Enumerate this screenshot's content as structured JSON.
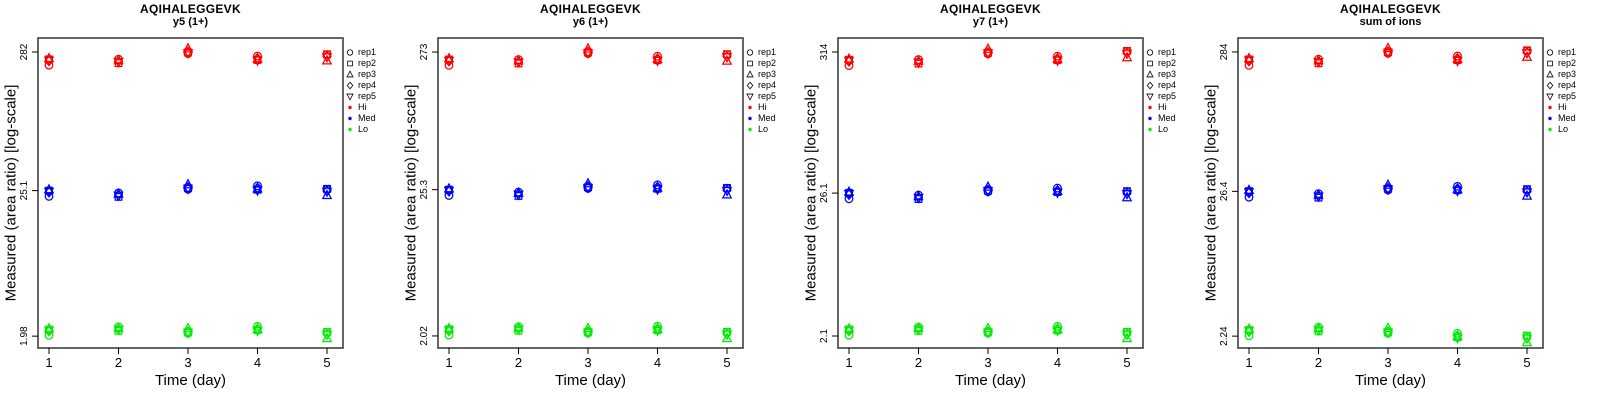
{
  "figure": {
    "background": "#ffffff",
    "box_color": "#404040",
    "tick_color": "#000000"
  },
  "plot_style": {
    "rep_markers": [
      "circle",
      "square",
      "triangle-up",
      "diamond",
      "triangle-down"
    ],
    "level_colors": {
      "Hi": "#ff0000",
      "Med": "#0000ff",
      "Lo": "#00ee00"
    }
  },
  "legend": {
    "entries": [
      {
        "label": "rep1",
        "marker": "circle",
        "color": "#000000"
      },
      {
        "label": "rep2",
        "marker": "square",
        "color": "#000000"
      },
      {
        "label": "rep3",
        "marker": "triangle-up",
        "color": "#000000"
      },
      {
        "label": "rep4",
        "marker": "diamond",
        "color": "#000000"
      },
      {
        "label": "rep5",
        "marker": "triangle-down",
        "color": "#000000"
      },
      {
        "label": "Hi",
        "marker": "dot",
        "color": "#ff0000"
      },
      {
        "label": "Med",
        "marker": "dot",
        "color": "#0000ff"
      },
      {
        "label": "Lo",
        "marker": "dot",
        "color": "#00ee00"
      }
    ]
  },
  "chart_data": [
    {
      "type": "scatter",
      "title": "AQIHALEGGEVK",
      "subtitle": "y5 (1+)",
      "xlabel": "Time (day)",
      "ylabel": "Measured (area ratio) [log-scale]",
      "yscale": "log",
      "x_days": [
        1,
        2,
        3,
        4,
        5
      ],
      "xticks": [
        "1",
        "2",
        "3",
        "4",
        "5"
      ],
      "ylim": [
        1.61,
        360
      ],
      "yticks": [
        {
          "v": 1.98,
          "label": "1.98"
        },
        {
          "v": 25.1,
          "label": "25.1"
        },
        {
          "v": 282,
          "label": "282"
        }
      ],
      "reps": [
        "rep1",
        "rep2",
        "rep3",
        "rep4",
        "rep5"
      ],
      "series": [
        {
          "name": "Hi",
          "color": "#ff0000",
          "rows": "day",
          "cols": "rep",
          "values": [
            [
              224,
              248,
              253,
              241,
              243
            ],
            [
              249,
              232,
              244,
              239,
              237
            ],
            [
              274,
              280,
              300,
              283,
              277
            ],
            [
              263,
              245,
              250,
              253,
              243
            ],
            [
              269,
              271,
              243,
              261,
              258
            ]
          ]
        },
        {
          "name": "Med",
          "color": "#0000ff",
          "rows": "day",
          "cols": "rep",
          "values": [
            [
              22.7,
              25.1,
              25.6,
              24.4,
              24.6
            ],
            [
              24.1,
              22.5,
              23.7,
              23.2,
              23.0
            ],
            [
              25.7,
              26.2,
              28.0,
              26.5,
              25.9
            ],
            [
              27.3,
              25.5,
              26.0,
              26.3,
              25.2
            ],
            [
              25.6,
              25.9,
              23.2,
              24.9,
              24.7
            ]
          ]
        },
        {
          "name": "Lo",
          "color": "#00ee00",
          "rows": "day",
          "cols": "rep",
          "values": [
            [
              2.01,
              2.22,
              2.27,
              2.16,
              2.18
            ],
            [
              2.33,
              2.17,
              2.28,
              2.24,
              2.22
            ],
            [
              2.08,
              2.12,
              2.27,
              2.14,
              2.1
            ],
            [
              2.35,
              2.2,
              2.24,
              2.26,
              2.17
            ],
            [
              2.11,
              2.13,
              1.91,
              2.05,
              2.03
            ]
          ]
        }
      ]
    },
    {
      "type": "scatter",
      "title": "AQIHALEGGEVK",
      "subtitle": "y6 (1+)",
      "xlabel": "Time (day)",
      "ylabel": "Measured (area ratio) [log-scale]",
      "yscale": "log",
      "x_days": [
        1,
        2,
        3,
        4,
        5
      ],
      "xticks": [
        "1",
        "2",
        "3",
        "4",
        "5"
      ],
      "ylim": [
        1.64,
        348
      ],
      "yticks": [
        {
          "v": 2.02,
          "label": "2.02"
        },
        {
          "v": 25.3,
          "label": "25.3"
        },
        {
          "v": 273,
          "label": "273"
        }
      ],
      "reps": [
        "rep1",
        "rep2",
        "rep3",
        "rep4",
        "rep5"
      ],
      "series": [
        {
          "name": "Hi",
          "color": "#ff0000",
          "rows": "day",
          "cols": "rep",
          "values": [
            [
              217,
              240,
              245,
              233,
              235
            ],
            [
              240,
              224,
              236,
              231,
              229
            ],
            [
              266,
              271,
              290,
              274,
              268
            ],
            [
              254,
              237,
              242,
              244,
              235
            ],
            [
              261,
              263,
              235,
              253,
              250
            ]
          ]
        },
        {
          "name": "Med",
          "color": "#0000ff",
          "rows": "day",
          "cols": "rep",
          "values": [
            [
              22.9,
              25.3,
              25.8,
              24.6,
              24.8
            ],
            [
              24.3,
              22.7,
              23.9,
              23.4,
              23.2
            ],
            [
              25.9,
              26.4,
              28.2,
              26.7,
              26.1
            ],
            [
              27.5,
              25.7,
              26.2,
              26.5,
              25.4
            ],
            [
              25.9,
              26.1,
              23.3,
              25.1,
              24.8
            ]
          ]
        },
        {
          "name": "Lo",
          "color": "#00ee00",
          "rows": "day",
          "cols": "rep",
          "values": [
            [
              2.05,
              2.27,
              2.31,
              2.2,
              2.22
            ],
            [
              2.37,
              2.21,
              2.33,
              2.28,
              2.26
            ],
            [
              2.12,
              2.16,
              2.31,
              2.18,
              2.14
            ],
            [
              2.39,
              2.23,
              2.28,
              2.3,
              2.21
            ],
            [
              2.15,
              2.17,
              1.94,
              2.09,
              2.07
            ]
          ]
        }
      ]
    },
    {
      "type": "scatter",
      "title": "AQIHALEGGEVK",
      "subtitle": "y7 (1+)",
      "xlabel": "Time (day)",
      "ylabel": "Measured (area ratio) [log-scale]",
      "yscale": "log",
      "x_days": [
        1,
        2,
        3,
        4,
        5
      ],
      "xticks": [
        "1",
        "2",
        "3",
        "4",
        "5"
      ],
      "ylim": [
        1.7,
        402
      ],
      "yticks": [
        {
          "v": 2.1,
          "label": "2.1"
        },
        {
          "v": 26.1,
          "label": "26.1"
        },
        {
          "v": 314,
          "label": "314"
        }
      ],
      "reps": [
        "rep1",
        "rep2",
        "rep3",
        "rep4",
        "rep5"
      ],
      "series": [
        {
          "name": "Hi",
          "color": "#ff0000",
          "rows": "day",
          "cols": "rep",
          "values": [
            [
              247,
              274,
              279,
              266,
              269
            ],
            [
              275,
              256,
              269,
              264,
              261
            ],
            [
              304,
              310,
              332,
              313,
              307
            ],
            [
              292,
              272,
              278,
              281,
              270
            ],
            [
              317,
              320,
              286,
              308,
              305
            ]
          ]
        },
        {
          "name": "Med",
          "color": "#0000ff",
          "rows": "day",
          "cols": "rep",
          "values": [
            [
              23.6,
              26.2,
              26.7,
              25.4,
              25.7
            ],
            [
              25.2,
              23.5,
              24.7,
              24.2,
              24.0
            ],
            [
              26.8,
              27.3,
              29.2,
              27.6,
              27.0
            ],
            [
              28.5,
              26.6,
              27.1,
              27.4,
              26.3
            ],
            [
              26.8,
              27.0,
              24.2,
              26.0,
              25.7
            ]
          ]
        },
        {
          "name": "Lo",
          "color": "#00ee00",
          "rows": "day",
          "cols": "rep",
          "values": [
            [
              2.13,
              2.36,
              2.4,
              2.29,
              2.31
            ],
            [
              2.46,
              2.3,
              2.42,
              2.37,
              2.35
            ],
            [
              2.21,
              2.25,
              2.41,
              2.27,
              2.23
            ],
            [
              2.49,
              2.32,
              2.37,
              2.39,
              2.3
            ],
            [
              2.24,
              2.26,
              2.02,
              2.17,
              2.15
            ]
          ]
        }
      ]
    },
    {
      "type": "scatter",
      "title": "AQIHALEGGEVK",
      "subtitle": "sum of ions",
      "xlabel": "Time (day)",
      "ylabel": "Measured (area ratio) [log-scale]",
      "yscale": "log",
      "x_days": [
        1,
        2,
        3,
        4,
        5
      ],
      "xticks": [
        "1",
        "2",
        "3",
        "4",
        "5"
      ],
      "ylim": [
        1.83,
        360
      ],
      "yticks": [
        {
          "v": 2.24,
          "label": "2.24"
        },
        {
          "v": 26.4,
          "label": "26.4"
        },
        {
          "v": 284,
          "label": "284"
        }
      ],
      "reps": [
        "rep1",
        "rep2",
        "rep3",
        "rep4",
        "rep5"
      ],
      "series": [
        {
          "name": "Hi",
          "color": "#ff0000",
          "rows": "day",
          "cols": "rep",
          "values": [
            [
              226,
              250,
              255,
              243,
              245
            ],
            [
              251,
              234,
              246,
              241,
              239
            ],
            [
              277,
              283,
              303,
              286,
              280
            ],
            [
              265,
              247,
              252,
              255,
              244
            ],
            [
              289,
              292,
              261,
              281,
              278
            ]
          ]
        },
        {
          "name": "Med",
          "color": "#0000ff",
          "rows": "day",
          "cols": "rep",
          "values": [
            [
              23.9,
              26.5,
              27.0,
              25.7,
              26.0
            ],
            [
              25.4,
              23.7,
              24.9,
              24.4,
              24.2
            ],
            [
              27.0,
              27.6,
              29.5,
              27.9,
              27.3
            ],
            [
              28.8,
              26.9,
              27.4,
              27.7,
              26.6
            ],
            [
              27.1,
              27.4,
              24.5,
              26.3,
              26.0
            ]
          ]
        },
        {
          "name": "Lo",
          "color": "#00ee00",
          "rows": "day",
          "cols": "rep",
          "values": [
            [
              2.25,
              2.49,
              2.54,
              2.42,
              2.44
            ],
            [
              2.61,
              2.43,
              2.56,
              2.51,
              2.48
            ],
            [
              2.35,
              2.4,
              2.57,
              2.42,
              2.38
            ],
            [
              2.35,
              2.2,
              2.24,
              2.26,
              2.17
            ],
            [
              2.24,
              2.26,
              2.02,
              2.17,
              2.15
            ]
          ]
        }
      ]
    }
  ]
}
